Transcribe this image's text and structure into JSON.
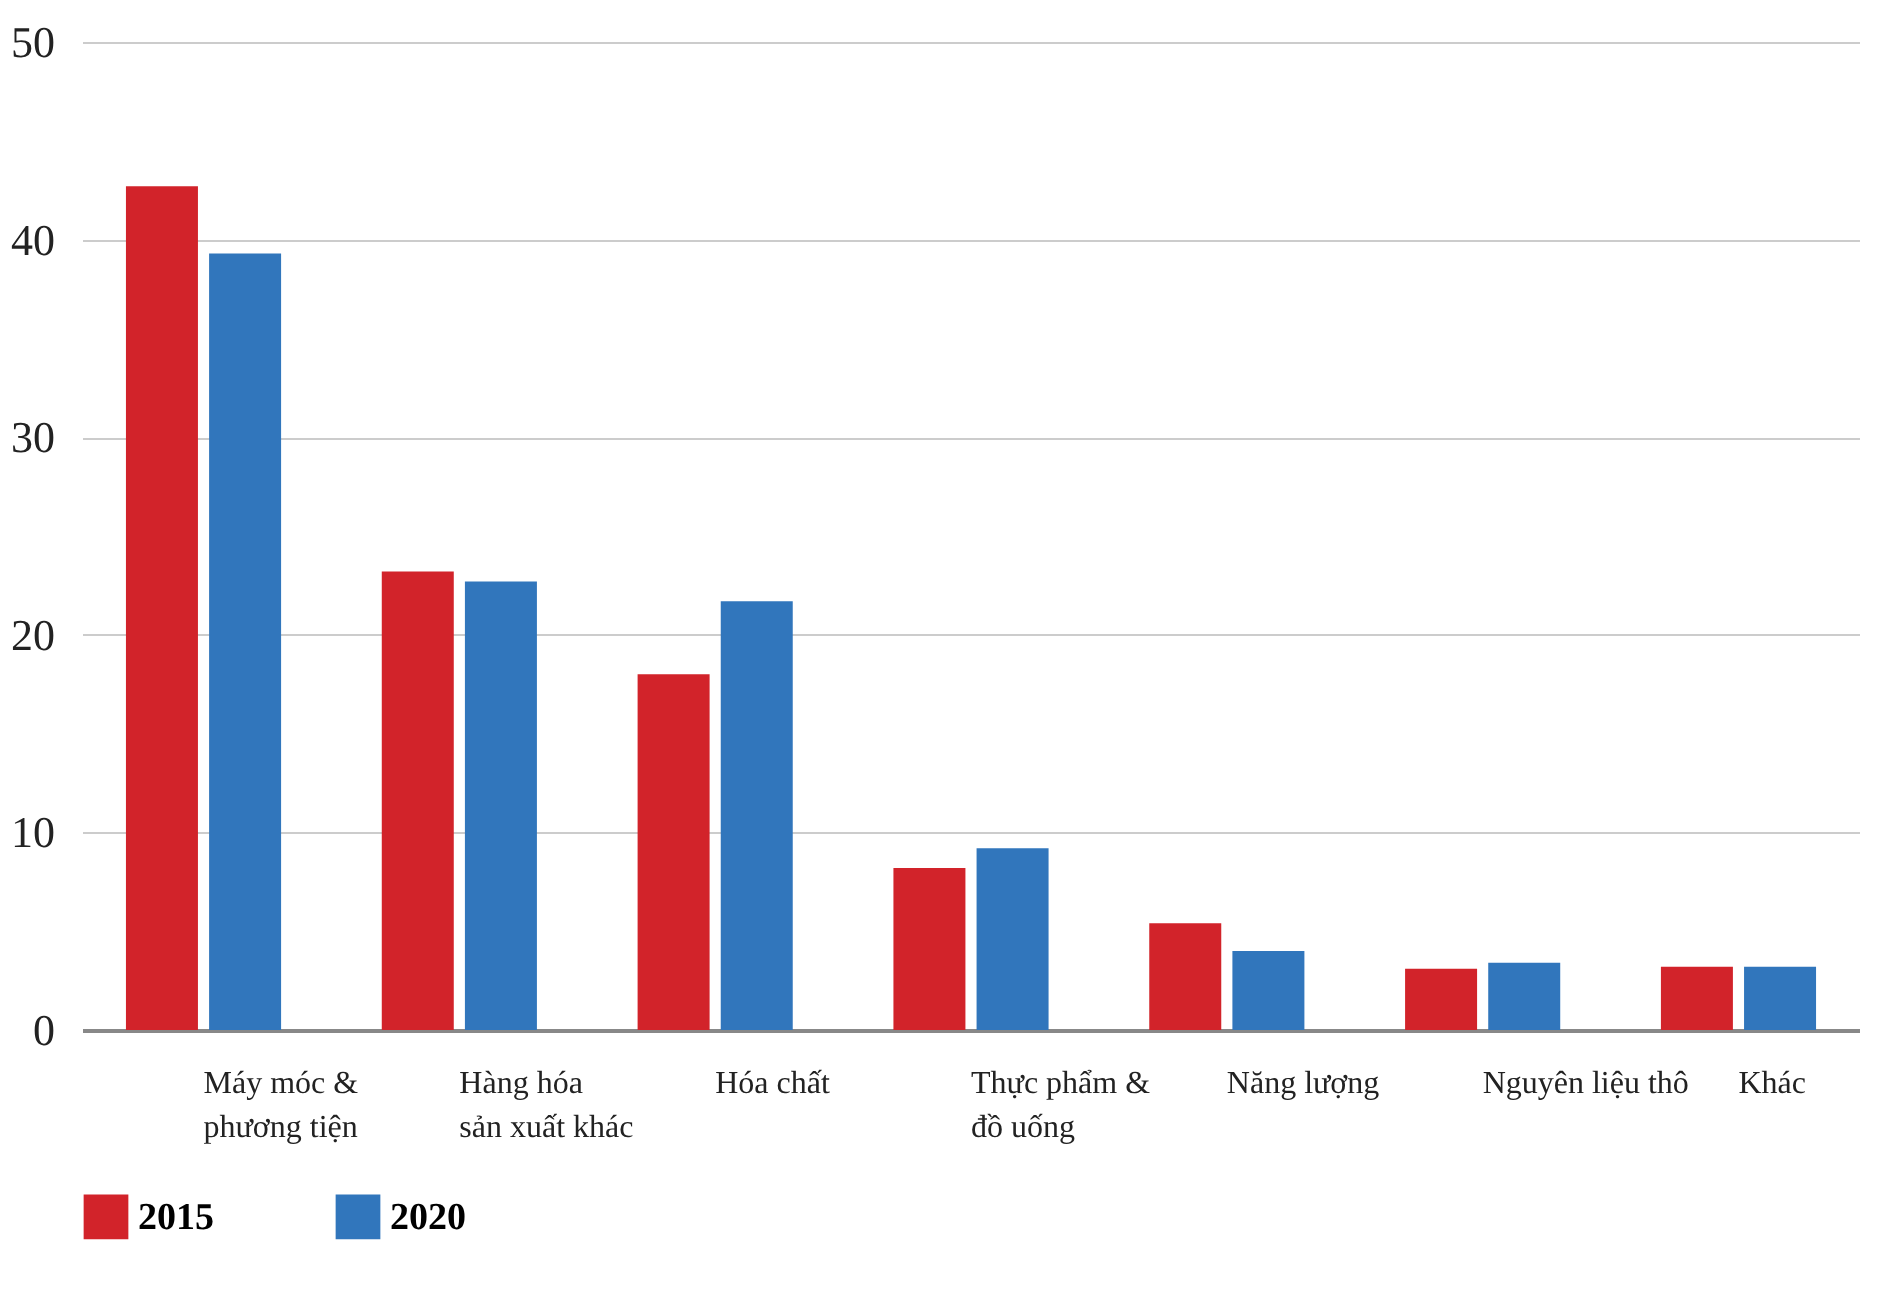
{
  "chart_data": {
    "type": "bar",
    "categories": [
      "Máy móc &\nphương tiện",
      "Hàng hóa\nsản xuất khác",
      "Hóa chất",
      "Thực phẩm &\nđồ uống",
      "Năng lượng",
      "Nguyên liệu thô",
      "Khác"
    ],
    "series": [
      {
        "name": "2015",
        "color": "#d2232a",
        "values": [
          42.7,
          23.2,
          18.0,
          8.2,
          5.4,
          3.1,
          3.2
        ]
      },
      {
        "name": "2020",
        "color": "#3176bc",
        "values": [
          39.3,
          22.7,
          21.7,
          9.2,
          4.0,
          3.4,
          3.2
        ]
      }
    ],
    "ylim": [
      0,
      50
    ],
    "yticks": [
      0,
      10,
      20,
      30,
      40,
      50
    ],
    "grid": "y",
    "legend": "bottom"
  }
}
